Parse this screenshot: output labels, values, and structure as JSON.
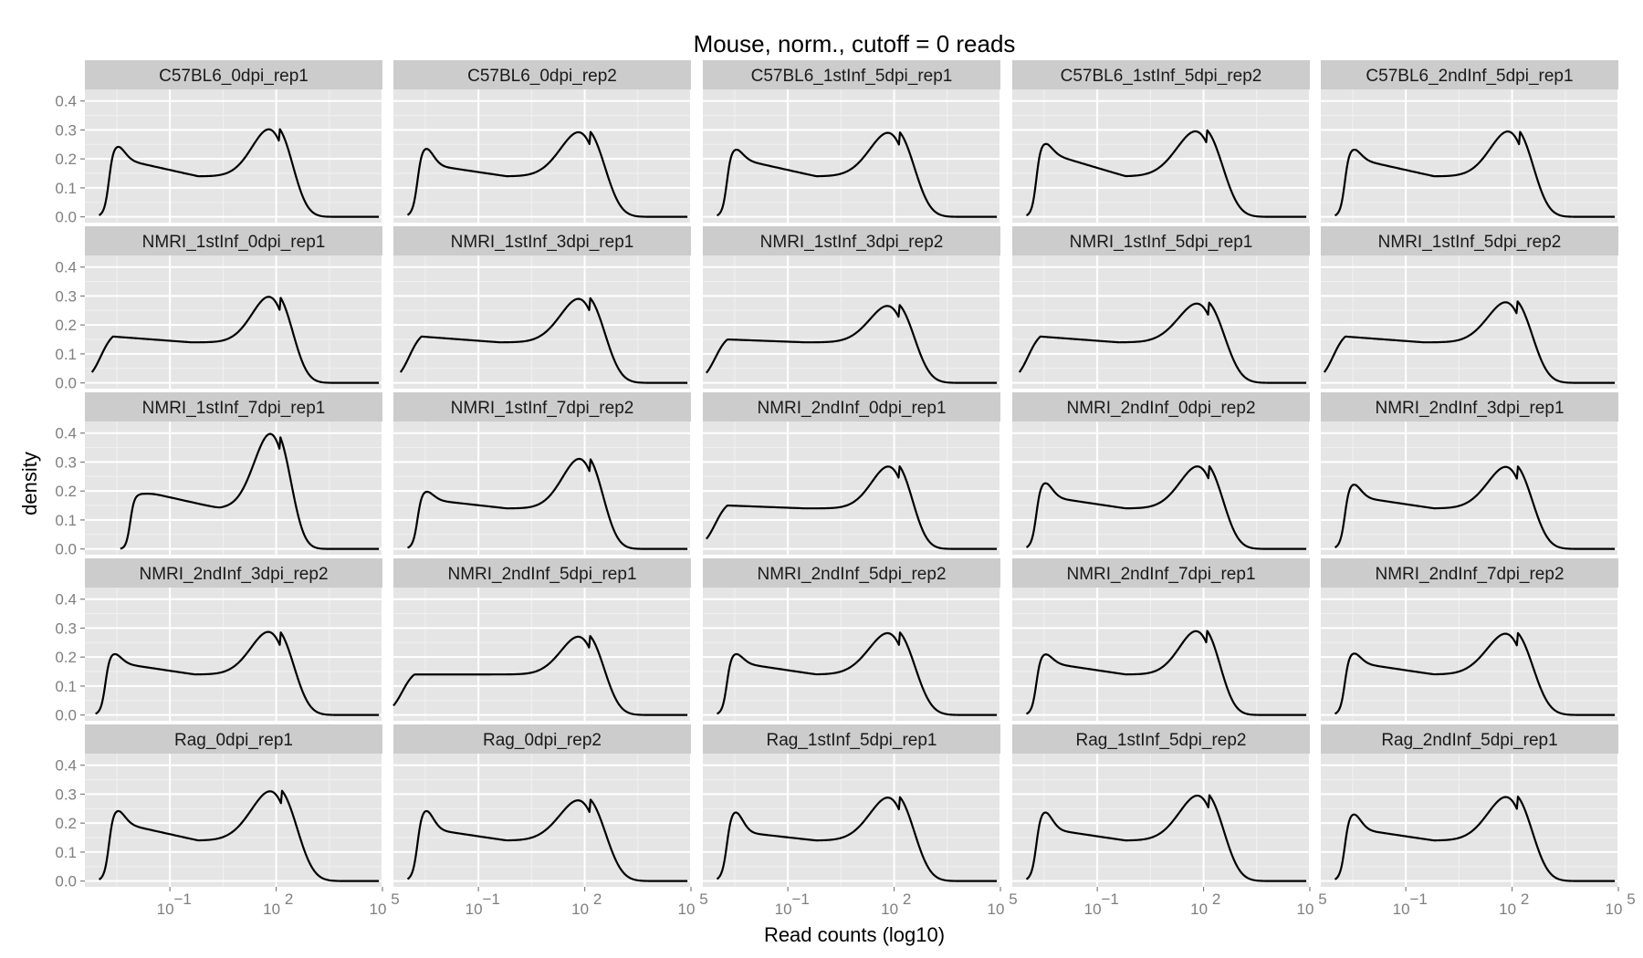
{
  "chart_data": {
    "type": "line",
    "title": "Mouse, norm., cutoff = 0 reads",
    "xlabel": "Read counts (log10)",
    "ylabel": "density",
    "x_scale": "log10",
    "xlim_log10": [
      -3.4,
      5.0
    ],
    "ylim": [
      -0.02,
      0.44
    ],
    "y_ticks": [
      0.0,
      0.1,
      0.2,
      0.3,
      0.4
    ],
    "y_tick_labels": [
      "0.0",
      "0.1",
      "0.2",
      "0.3",
      "0.4"
    ],
    "x_ticks_log10": [
      -1,
      2,
      5
    ],
    "x_tick_labels": [
      {
        "base": "10",
        "exp": "−1"
      },
      {
        "base": "10",
        "exp": "2"
      },
      {
        "base": "10",
        "exp": "5"
      }
    ],
    "grid": true,
    "layout": "facet grid 5 x 5",
    "panels": [
      {
        "label": "C57BL6_0dpi_rep1",
        "curve": {
          "start": -3.0,
          "mode": "sharp",
          "left": 0.245,
          "shoulder": 0.2,
          "peak": 0.318,
          "peak_x": 1.9,
          "width": 0.55
        }
      },
      {
        "label": "C57BL6_0dpi_rep2",
        "curve": {
          "start": -3.0,
          "mode": "sharp",
          "left": 0.238,
          "shoulder": 0.18,
          "peak": 0.307,
          "peak_x": 1.95,
          "width": 0.6
        }
      },
      {
        "label": "C57BL6_1stInf_5dpi_rep1",
        "curve": {
          "start": -3.0,
          "mode": "sharp",
          "left": 0.235,
          "shoulder": 0.2,
          "peak": 0.305,
          "peak_x": 1.95,
          "width": 0.6
        }
      },
      {
        "label": "C57BL6_1stInf_5dpi_rep2",
        "curve": {
          "start": -3.0,
          "mode": "sharp",
          "left": 0.255,
          "shoulder": 0.22,
          "peak": 0.31,
          "peak_x": 1.9,
          "width": 0.62
        }
      },
      {
        "label": "C57BL6_2ndInf_5dpi_rep1",
        "curve": {
          "start": -3.0,
          "mode": "sharp",
          "left": 0.235,
          "shoulder": 0.2,
          "peak": 0.31,
          "peak_x": 2.0,
          "width": 0.58
        }
      },
      {
        "label": "NMRI_1stInf_0dpi_rep1",
        "curve": {
          "start": -3.2,
          "mode": "smooth",
          "left": 0.19,
          "shoulder": 0.16,
          "peak": 0.313,
          "peak_x": 1.9,
          "width": 0.55
        }
      },
      {
        "label": "NMRI_1stInf_3dpi_rep1",
        "curve": {
          "start": -3.2,
          "mode": "smooth",
          "left": 0.19,
          "shoulder": 0.16,
          "peak": 0.305,
          "peak_x": 1.95,
          "width": 0.6
        }
      },
      {
        "label": "NMRI_1stInf_3dpi_rep2",
        "curve": {
          "start": -3.3,
          "mode": "smooth",
          "left": 0.178,
          "shoulder": 0.15,
          "peak": 0.28,
          "peak_x": 1.95,
          "width": 0.6
        }
      },
      {
        "label": "NMRI_1stInf_5dpi_rep1",
        "curve": {
          "start": -3.2,
          "mode": "smooth",
          "left": 0.195,
          "shoulder": 0.16,
          "peak": 0.288,
          "peak_x": 1.95,
          "width": 0.62
        }
      },
      {
        "label": "NMRI_1stInf_5dpi_rep2",
        "curve": {
          "start": -3.3,
          "mode": "smooth",
          "left": 0.185,
          "shoulder": 0.16,
          "peak": 0.293,
          "peak_x": 1.95,
          "width": 0.6
        }
      },
      {
        "label": "NMRI_1stInf_7dpi_rep1",
        "curve": {
          "start": -2.4,
          "mode": "sharp",
          "left": 0.19,
          "shoulder": 0.2,
          "peak": 0.415,
          "peak_x": 1.9,
          "width": 0.5
        }
      },
      {
        "label": "NMRI_1stInf_7dpi_rep2",
        "curve": {
          "start": -3.0,
          "mode": "sharp",
          "left": 0.2,
          "shoulder": 0.17,
          "peak": 0.327,
          "peak_x": 1.95,
          "width": 0.55
        }
      },
      {
        "label": "NMRI_2ndInf_0dpi_rep1",
        "curve": {
          "start": -3.3,
          "mode": "smooth",
          "left": 0.188,
          "shoulder": 0.15,
          "peak": 0.3,
          "peak_x": 1.95,
          "width": 0.55
        }
      },
      {
        "label": "NMRI_2ndInf_0dpi_rep2",
        "curve": {
          "start": -3.0,
          "mode": "sharp",
          "left": 0.23,
          "shoulder": 0.18,
          "peak": 0.3,
          "peak_x": 1.95,
          "width": 0.58
        }
      },
      {
        "label": "NMRI_2ndInf_3dpi_rep1",
        "curve": {
          "start": -3.0,
          "mode": "sharp",
          "left": 0.225,
          "shoulder": 0.18,
          "peak": 0.298,
          "peak_x": 1.95,
          "width": 0.6
        }
      },
      {
        "label": "NMRI_2ndInf_3dpi_rep2",
        "curve": {
          "start": -3.1,
          "mode": "sharp",
          "left": 0.213,
          "shoulder": 0.18,
          "peak": 0.302,
          "peak_x": 1.9,
          "width": 0.58
        }
      },
      {
        "label": "NMRI_2ndInf_5dpi_rep1",
        "curve": {
          "start": -3.4,
          "mode": "smooth",
          "left": 0.183,
          "shoulder": 0.14,
          "peak": 0.285,
          "peak_x": 1.95,
          "width": 0.58
        }
      },
      {
        "label": "NMRI_2ndInf_5dpi_rep2",
        "curve": {
          "start": -3.0,
          "mode": "sharp",
          "left": 0.213,
          "shoulder": 0.18,
          "peak": 0.297,
          "peak_x": 1.95,
          "width": 0.62
        }
      },
      {
        "label": "NMRI_2ndInf_7dpi_rep1",
        "curve": {
          "start": -3.0,
          "mode": "sharp",
          "left": 0.212,
          "shoulder": 0.18,
          "peak": 0.305,
          "peak_x": 1.9,
          "width": 0.55
        }
      },
      {
        "label": "NMRI_2ndInf_7dpi_rep2",
        "curve": {
          "start": -3.0,
          "mode": "sharp",
          "left": 0.215,
          "shoulder": 0.18,
          "peak": 0.295,
          "peak_x": 1.95,
          "width": 0.62
        }
      },
      {
        "label": "Rag_0dpi_rep1",
        "curve": {
          "start": -3.0,
          "mode": "sharp",
          "left": 0.245,
          "shoulder": 0.2,
          "peak": 0.325,
          "peak_x": 1.95,
          "width": 0.62
        }
      },
      {
        "label": "Rag_0dpi_rep2",
        "curve": {
          "start": -3.0,
          "mode": "sharp",
          "left": 0.245,
          "shoulder": 0.18,
          "peak": 0.293,
          "peak_x": 1.95,
          "width": 0.62
        }
      },
      {
        "label": "Rag_1stInf_5dpi_rep1",
        "curve": {
          "start": -3.0,
          "mode": "sharp",
          "left": 0.24,
          "shoulder": 0.17,
          "peak": 0.303,
          "peak_x": 1.95,
          "width": 0.6
        }
      },
      {
        "label": "Rag_1stInf_5dpi_rep2",
        "curve": {
          "start": -3.0,
          "mode": "sharp",
          "left": 0.24,
          "shoulder": 0.18,
          "peak": 0.31,
          "peak_x": 1.95,
          "width": 0.6
        }
      },
      {
        "label": "Rag_2ndInf_5dpi_rep1",
        "curve": {
          "start": -3.0,
          "mode": "sharp",
          "left": 0.233,
          "shoulder": 0.18,
          "peak": 0.305,
          "peak_x": 1.95,
          "width": 0.6
        }
      }
    ],
    "colors": {
      "panel_bg": "#e5e5e5",
      "strip_bg": "#cccccc",
      "grid_major": "#ffffff",
      "grid_minor": "#f2f2f2",
      "line": "#000000",
      "tick": "#7f7f7f"
    }
  }
}
